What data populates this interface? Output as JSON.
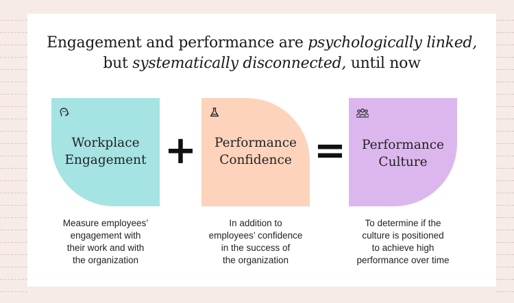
{
  "headline": {
    "line1_a": "Engagement and performance are ",
    "line1_b": "psychologically linked,",
    "line2_a": "but ",
    "line2_b": "systematically disconnected,",
    "line2_c": " until now"
  },
  "tiles": [
    {
      "icon": "head-icon",
      "label_lines": [
        "Workplace",
        "Engagement"
      ],
      "color": "#a6e3e3"
    },
    {
      "icon": "flask-icon",
      "label_lines": [
        "Performance",
        "Confidence"
      ],
      "color": "#fdd3bc"
    },
    {
      "icon": "team-icon",
      "label_lines": [
        "Performance",
        "Culture"
      ],
      "color": "#dcb7ee"
    }
  ],
  "operators": [
    "+",
    "="
  ],
  "descriptions": [
    [
      "Measure employees’",
      "engagement with",
      "their work and with",
      "the organization"
    ],
    [
      "In addition to",
      "employees’ confidence",
      "in the success of",
      "the organization"
    ],
    [
      "To determine if the",
      "culture is positioned",
      "to achieve high",
      "performance over time"
    ]
  ]
}
